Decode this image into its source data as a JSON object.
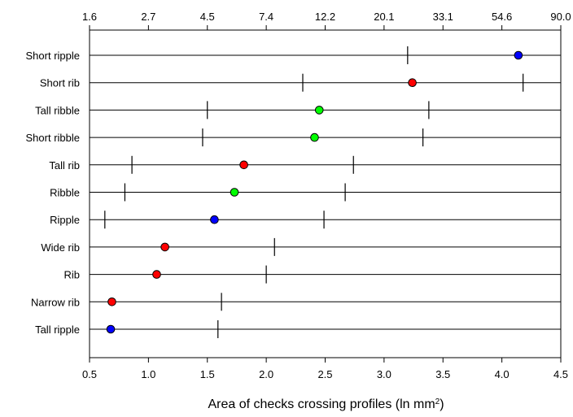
{
  "chart_data": {
    "type": "scatter",
    "title": "",
    "xlabel": "Area of checks crossing profiles (ln mm",
    "xlabel_superscript": "2",
    "xlabel_suffix": ")",
    "xlim": [
      0.5,
      4.5
    ],
    "x_ticks_bottom": [
      "0.5",
      "1.0",
      "1.5",
      "2.0",
      "2.5",
      "3.0",
      "3.5",
      "4.0",
      "4.5"
    ],
    "x_ticks_top": [
      "1.6",
      "2.7",
      "4.5",
      "7.4",
      "12.2",
      "20.1",
      "33.1",
      "54.6",
      "90.0"
    ],
    "grid": "horizontal lines per category",
    "colors": {
      "blue": "#0000ff",
      "red": "#ff0000",
      "green": "#00ff00"
    },
    "categories": [
      "Short ripple",
      "Short rib",
      "Tall ribble",
      "Short ribble",
      "Tall rib",
      "Ribble",
      "Ripple",
      "Wide rib",
      "Rib",
      "Narrow rib",
      "Tall ripple"
    ],
    "points": [
      {
        "category": "Short ripple",
        "value": 4.14,
        "color": "blue",
        "lower": 3.2,
        "upper": null
      },
      {
        "category": "Short rib",
        "value": 3.24,
        "color": "red",
        "lower": 2.31,
        "upper": 4.18
      },
      {
        "category": "Tall ribble",
        "value": 2.45,
        "color": "green",
        "lower": 1.5,
        "upper": 3.38
      },
      {
        "category": "Short ribble",
        "value": 2.41,
        "color": "green",
        "lower": 1.46,
        "upper": 3.33
      },
      {
        "category": "Tall rib",
        "value": 1.81,
        "color": "red",
        "lower": 0.86,
        "upper": 2.74
      },
      {
        "category": "Ribble",
        "value": 1.73,
        "color": "green",
        "lower": 0.8,
        "upper": 2.67
      },
      {
        "category": "Ripple",
        "value": 1.56,
        "color": "blue",
        "lower": 0.63,
        "upper": 2.49
      },
      {
        "category": "Wide rib",
        "value": 1.14,
        "color": "red",
        "lower": null,
        "upper": 2.07
      },
      {
        "category": "Rib",
        "value": 1.07,
        "color": "red",
        "lower": null,
        "upper": 2.0
      },
      {
        "category": "Narrow rib",
        "value": 0.69,
        "color": "red",
        "lower": null,
        "upper": 1.62
      },
      {
        "category": "Tall ripple",
        "value": 0.68,
        "color": "blue",
        "lower": null,
        "upper": 1.59
      }
    ]
  }
}
